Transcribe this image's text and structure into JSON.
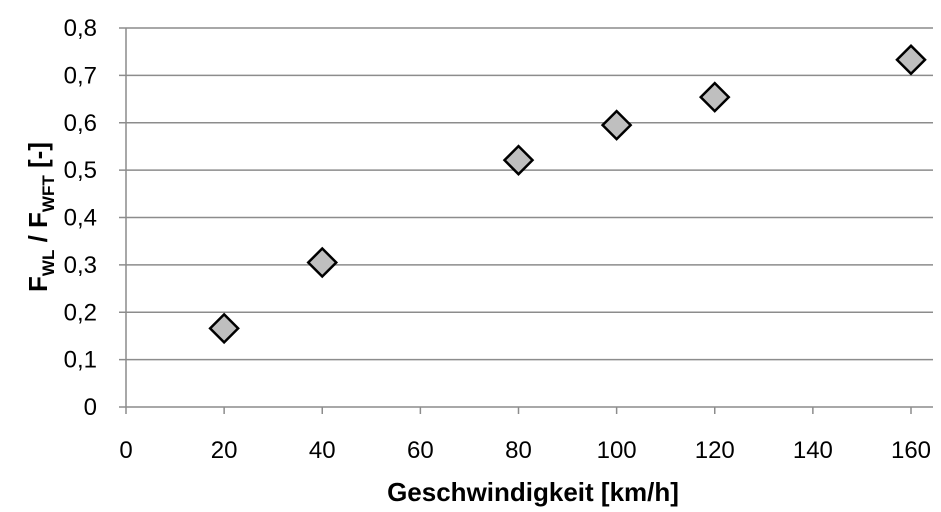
{
  "chart_data": {
    "type": "scatter",
    "xlabel": "Geschwindigkeit [km/h]",
    "ylabel": {
      "main1": "F",
      "sub1": "WL",
      "mid": " / F",
      "sub2": "WFT",
      "unit": " [-]"
    },
    "xlim": [
      0,
      160
    ],
    "ylim": [
      0,
      0.8
    ],
    "x_ticks": [
      "0",
      "20",
      "40",
      "60",
      "80",
      "100",
      "120",
      "140",
      "160"
    ],
    "y_ticks": [
      "0",
      "0,1",
      "0,2",
      "0,3",
      "0,4",
      "0,5",
      "0,6",
      "0,7",
      "0,8"
    ],
    "grid": true,
    "marker": "diamond",
    "colors": {
      "marker_fill": "#bfbfbf",
      "marker_stroke": "#000000",
      "grid": "#8c8c8c",
      "axis": "#8c8c8c"
    },
    "series": [
      {
        "x": [
          20,
          40,
          80,
          100,
          120,
          160
        ],
        "y": [
          0.166,
          0.305,
          0.521,
          0.595,
          0.654,
          0.733
        ]
      }
    ]
  }
}
